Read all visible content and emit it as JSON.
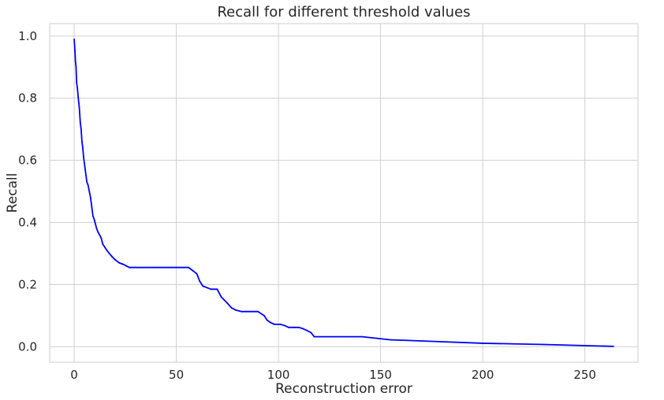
{
  "chart_data": {
    "type": "line",
    "title": "Recall for different threshold values",
    "xlabel": "Reconstruction error",
    "ylabel": "Recall",
    "xlim": [
      -12,
      276
    ],
    "ylim": [
      -0.05,
      1.04
    ],
    "xticks": [
      0,
      50,
      100,
      150,
      200,
      250
    ],
    "yticks": [
      0.0,
      0.2,
      0.4,
      0.6,
      0.8,
      1.0
    ],
    "ytick_labels": [
      "0.0",
      "0.2",
      "0.4",
      "0.6",
      "0.8",
      "1.0"
    ],
    "grid": true,
    "series": [
      {
        "color": "#0000ff",
        "x": [
          0.0,
          0.4,
          0.6,
          0.9,
          1.2,
          1.6,
          2.0,
          2.5,
          3.0,
          3.4,
          3.8,
          4.2,
          4.6,
          5.0,
          5.4,
          5.8,
          6.2,
          6.8,
          7.4,
          8.0,
          8.6,
          9.2,
          9.8,
          10.2,
          10.6,
          11.0,
          11.6,
          12.4,
          13.2,
          14.0,
          15.0,
          16.0,
          17.2,
          18.5,
          20.0,
          22.0,
          24.0,
          25.5,
          27.0,
          30.0,
          40.0,
          50.0,
          56.0,
          58.0,
          60.0,
          61.5,
          63.0,
          65.0,
          67.0,
          70.0,
          72.0,
          73.5,
          75.0,
          77.0,
          79.0,
          82.0,
          86.0,
          90.0,
          93.0,
          94.5,
          96.0,
          98.0,
          101.0,
          103.0,
          105.0,
          108.0,
          110.0,
          112.0,
          114.0,
          116.0,
          117.5,
          120.0,
          130.0,
          141.0,
          148.0,
          155.0,
          160.0,
          180.0,
          200.0,
          230.0,
          264.0
        ],
        "y": [
          0.99,
          0.95,
          0.92,
          0.9,
          0.85,
          0.83,
          0.8,
          0.77,
          0.72,
          0.7,
          0.66,
          0.64,
          0.61,
          0.59,
          0.57,
          0.55,
          0.53,
          0.52,
          0.5,
          0.48,
          0.45,
          0.42,
          0.41,
          0.4,
          0.39,
          0.38,
          0.37,
          0.36,
          0.35,
          0.33,
          0.32,
          0.31,
          0.3,
          0.29,
          0.28,
          0.27,
          0.265,
          0.26,
          0.255,
          0.255,
          0.255,
          0.255,
          0.255,
          0.245,
          0.235,
          0.21,
          0.195,
          0.19,
          0.185,
          0.185,
          0.16,
          0.15,
          0.14,
          0.125,
          0.118,
          0.113,
          0.113,
          0.113,
          0.1,
          0.085,
          0.078,
          0.072,
          0.072,
          0.068,
          0.062,
          0.062,
          0.062,
          0.058,
          0.052,
          0.045,
          0.032,
          0.032,
          0.032,
          0.032,
          0.027,
          0.022,
          0.021,
          0.016,
          0.011,
          0.007,
          0.001
        ]
      }
    ]
  }
}
